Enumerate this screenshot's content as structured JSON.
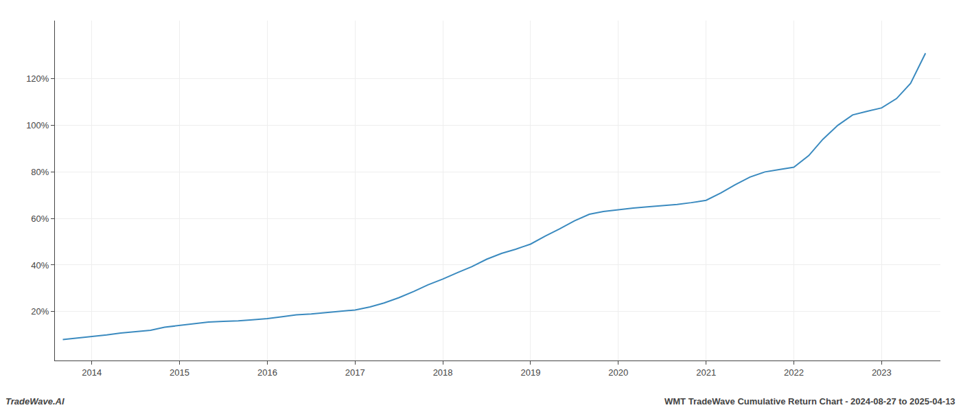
{
  "chart_data": {
    "type": "line",
    "annotations": [
      "TradeWave.AI",
      "WMT TradeWave Cumulative Return Chart - 2024-08-27 to 2025-04-13"
    ],
    "x": [
      2013.67,
      2013.75,
      2013.83,
      2013.92,
      2014.0,
      2014.17,
      2014.33,
      2014.5,
      2014.67,
      2014.83,
      2015.0,
      2015.17,
      2015.33,
      2015.5,
      2015.67,
      2015.83,
      2016.0,
      2016.17,
      2016.33,
      2016.5,
      2016.67,
      2016.83,
      2017.0,
      2017.17,
      2017.33,
      2017.5,
      2017.67,
      2017.83,
      2018.0,
      2018.17,
      2018.33,
      2018.5,
      2018.67,
      2018.83,
      2019.0,
      2019.17,
      2019.33,
      2019.5,
      2019.67,
      2019.83,
      2020.0,
      2020.17,
      2020.33,
      2020.5,
      2020.67,
      2020.83,
      2021.0,
      2021.17,
      2021.33,
      2021.5,
      2021.67,
      2021.83,
      2022.0,
      2022.17,
      2022.33,
      2022.5,
      2022.67,
      2022.83,
      2023.0,
      2023.17,
      2023.33,
      2023.5
    ],
    "values": [
      0.08,
      0.083,
      0.086,
      0.09,
      0.093,
      0.1,
      0.108,
      0.113,
      0.12,
      0.133,
      0.14,
      0.148,
      0.155,
      0.158,
      0.16,
      0.165,
      0.17,
      0.178,
      0.186,
      0.19,
      0.196,
      0.2,
      0.207,
      0.22,
      0.237,
      0.26,
      0.287,
      0.315,
      0.34,
      0.368,
      0.393,
      0.425,
      0.45,
      0.468,
      0.49,
      0.525,
      0.555,
      0.59,
      0.618,
      0.63,
      0.638,
      0.645,
      0.65,
      0.655,
      0.66,
      0.668,
      0.678,
      0.71,
      0.745,
      0.778,
      0.8,
      0.81,
      0.82,
      0.87,
      0.94,
      1.0,
      1.045,
      1.06,
      1.075,
      1.115,
      1.18,
      1.31
    ],
    "color": "#3a8abf",
    "xlim": [
      2013.58,
      2023.67
    ],
    "xticks": [
      2014,
      2015,
      2016,
      2017,
      2018,
      2019,
      2020,
      2021,
      2022,
      2023
    ],
    "ylim": [
      -0.01,
      1.45
    ],
    "yticks": [
      {
        "value": 0.2,
        "label": "20%"
      },
      {
        "value": 0.4,
        "label": "40%"
      },
      {
        "value": 0.6,
        "label": "60%"
      },
      {
        "value": 0.8,
        "label": "80%"
      },
      {
        "value": 1.0,
        "label": "100%"
      },
      {
        "value": 1.2,
        "label": "120%"
      }
    ],
    "grid": true
  }
}
